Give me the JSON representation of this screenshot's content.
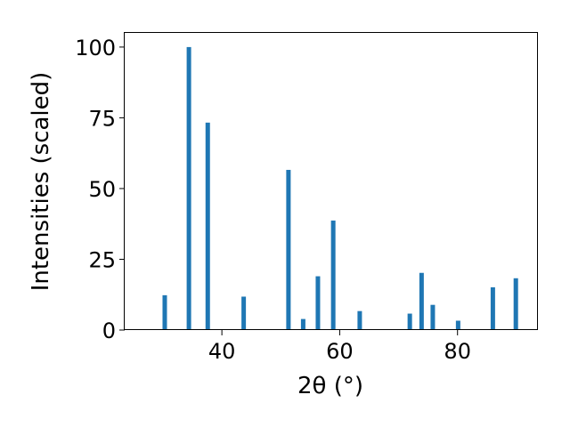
{
  "chart_data": {
    "type": "bar",
    "xlabel": "2θ (°)",
    "ylabel": "Intensities (scaled)",
    "xlim": [
      23.5,
      93.5
    ],
    "ylim": [
      0,
      105
    ],
    "xticks": [
      40,
      60,
      80
    ],
    "yticks": [
      0,
      25,
      50,
      75,
      100
    ],
    "bar_color": "#1f77b4",
    "grid": false,
    "x": [
      26.0,
      30.3,
      34.4,
      37.6,
      43.7,
      46.2,
      51.3,
      53.8,
      56.3,
      58.9,
      63.4,
      65.6,
      67.6,
      69.5,
      71.9,
      73.9,
      75.8,
      80.1,
      84.0,
      86.0,
      89.9
    ],
    "values": [
      0.2,
      12.3,
      100.0,
      73.3,
      11.8,
      0.3,
      56.6,
      3.9,
      19.0,
      38.7,
      6.7,
      0.3,
      0.3,
      0.3,
      5.8,
      20.2,
      8.9,
      3.3,
      0.3,
      15.1,
      18.3
    ]
  }
}
